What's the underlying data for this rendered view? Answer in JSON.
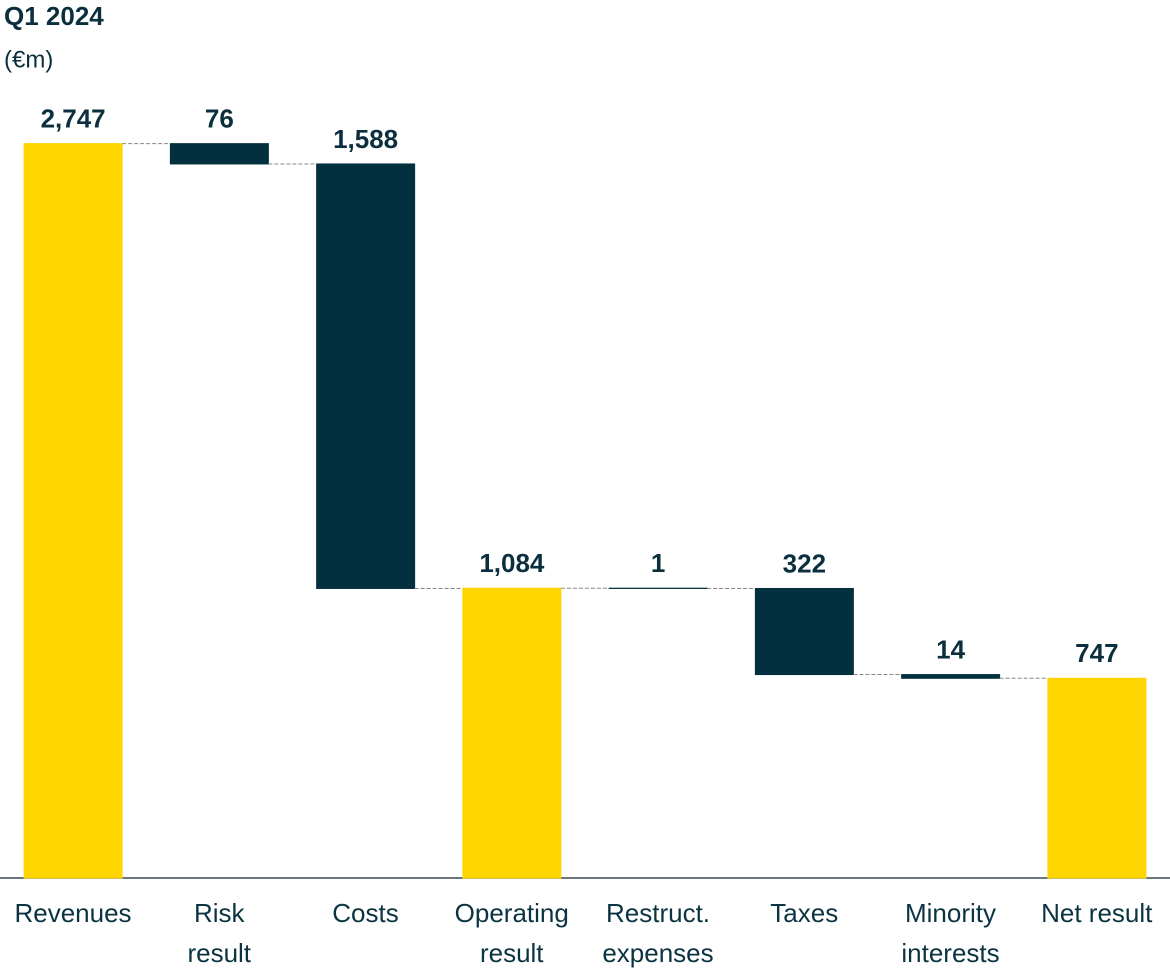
{
  "chart_data": {
    "type": "waterfall",
    "title": "Q1 2024",
    "subtitle": "(€m)",
    "categories": [
      "Revenues",
      "Risk\nresult",
      "Costs",
      "Operating\nresult",
      "Restruct.\nexpenses",
      "Taxes",
      "Minority\ninterests",
      "Net result"
    ],
    "values": [
      2747,
      76,
      1588,
      1084,
      1,
      322,
      14,
      747
    ],
    "value_labels": [
      "2,747",
      "76",
      "1,588",
      "1,084",
      "1",
      "322",
      "14",
      "747"
    ],
    "steps": [
      "total",
      "decrease",
      "decrease",
      "total",
      "decrease",
      "decrease",
      "decrease",
      "total"
    ],
    "colors": {
      "total": "#ffd500",
      "decrease": "#03303f"
    },
    "ylim": [
      0,
      3000
    ]
  }
}
